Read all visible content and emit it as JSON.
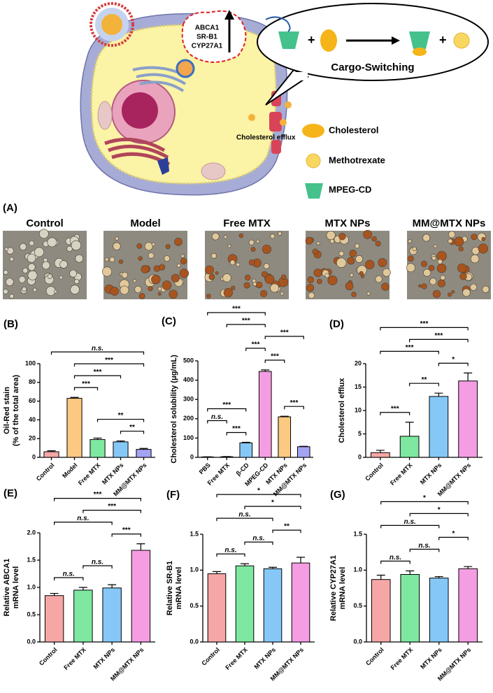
{
  "schematic": {
    "markers": [
      "ABCA1",
      "SR-B1",
      "CYP27A1"
    ],
    "bubble_title": "Cargo-Switching",
    "efflux_label": "Cholesterol efflux",
    "legend": [
      "Cholesterol",
      "Methotrexate",
      "MPEG-CD"
    ]
  },
  "panel_a": {
    "panel": "(A)",
    "labels": [
      "Control",
      "Model",
      "Free MTX",
      "MTX NPs",
      "MM@MTX NPs"
    ]
  },
  "chart_data": [
    {
      "type": "bar",
      "panel": "(B)",
      "ylabel": [
        "Oil-Red stain",
        "(% of the total area)"
      ],
      "categories": [
        "Control",
        "Model",
        "Free MTX",
        "MTX NPs",
        "MM@MTX NPs"
      ],
      "values": [
        6,
        63,
        19,
        16.5,
        8.5
      ],
      "errors": [
        1,
        1,
        1.5,
        1,
        1
      ],
      "colors": [
        "#f7a6a6",
        "#fcc981",
        "#7ee8a1",
        "#85c8f7",
        "#a3a3f2"
      ],
      "ylim": [
        0,
        100
      ],
      "yticks": [
        0,
        20,
        40,
        60,
        80,
        100
      ],
      "brackets": [
        {
          "from": "Control",
          "to": "MM@MTX NPs",
          "label": "n.s."
        },
        {
          "from": "Model",
          "to": "MM@MTX NPs",
          "label": "***"
        },
        {
          "from": "Model",
          "to": "MTX NPs",
          "label": "***"
        },
        {
          "from": "Model",
          "to": "Free MTX",
          "label": "***"
        },
        {
          "from": "Free MTX",
          "to": "MM@MTX NPs",
          "label": "**"
        },
        {
          "from": "MTX NPs",
          "to": "MM@MTX NPs",
          "label": "**"
        }
      ]
    },
    {
      "type": "bar",
      "panel": "(C)",
      "ylabel": [
        "Cholesterol solubility (μg/mL)"
      ],
      "categories": [
        "PBS",
        "Free MTX",
        "β-CD",
        "MPEG-CD",
        "MTX NPs",
        "MM@MTX NPs"
      ],
      "values": [
        2,
        3,
        75,
        445,
        210,
        55
      ],
      "errors": [
        1,
        1,
        3,
        8,
        3,
        2
      ],
      "colors": [
        "#f7a6a6",
        "#7ee8a1",
        "#85c8f7",
        "#f59de3",
        "#fcc981",
        "#a3a3f2"
      ],
      "ylim": [
        0,
        500
      ],
      "yticks": [
        0,
        100,
        200,
        300,
        400,
        500
      ],
      "brackets": [
        {
          "from": "PBS",
          "to": "MPEG-CD",
          "label": "***"
        },
        {
          "from": "Free MTX",
          "to": "MPEG-CD",
          "label": "***"
        },
        {
          "from": "MPEG-CD",
          "to": "MM@MTX NPs",
          "label": "***"
        },
        {
          "from": "β-CD",
          "to": "MPEG-CD",
          "label": "***"
        },
        {
          "from": "MPEG-CD",
          "to": "MTX NPs",
          "label": "***"
        },
        {
          "from": "PBS",
          "to": "β-CD",
          "label": "***"
        },
        {
          "from": "PBS",
          "to": "Free MTX",
          "label": "n.s."
        },
        {
          "from": "Free MTX",
          "to": "β-CD",
          "label": "***"
        },
        {
          "from": "MTX NPs",
          "to": "MM@MTX NPs",
          "label": "***"
        }
      ]
    },
    {
      "type": "bar",
      "panel": "(D)",
      "ylabel": [
        "Cholesterol efflux"
      ],
      "categories": [
        "Control",
        "Free MTX",
        "MTX NPs",
        "MM@MTX NPs"
      ],
      "values": [
        1,
        4.5,
        13,
        16.3
      ],
      "errors": [
        0.5,
        3,
        0.7,
        1.7
      ],
      "colors": [
        "#f7a6a6",
        "#7ee8a1",
        "#85c8f7",
        "#f59de3"
      ],
      "ylim": [
        0,
        20
      ],
      "yticks": [
        0,
        5,
        10,
        15,
        20
      ],
      "brackets": [
        {
          "from": "Control",
          "to": "MM@MTX NPs",
          "label": "***"
        },
        {
          "from": "Free MTX",
          "to": "MM@MTX NPs",
          "label": "***"
        },
        {
          "from": "Control",
          "to": "MTX NPs",
          "label": "***"
        },
        {
          "from": "MTX NPs",
          "to": "MM@MTX NPs",
          "label": "*"
        },
        {
          "from": "Free MTX",
          "to": "MTX NPs",
          "label": "**"
        },
        {
          "from": "Control",
          "to": "Free MTX",
          "label": "***"
        }
      ]
    },
    {
      "type": "bar",
      "panel": "(E)",
      "ylabel": [
        "Relative ABCA1",
        "mRNA level"
      ],
      "categories": [
        "Control",
        "Free MTX",
        "MTX NPs",
        "MM@MTX NPs"
      ],
      "values": [
        0.85,
        0.95,
        0.99,
        1.68
      ],
      "errors": [
        0.04,
        0.05,
        0.06,
        0.12
      ],
      "colors": [
        "#f7a6a6",
        "#7ee8a1",
        "#85c8f7",
        "#f59de3"
      ],
      "ylim": [
        0,
        2
      ],
      "yticks": [
        {
          "value": 0,
          "label": "0.0"
        },
        0.5,
        {
          "value": 1,
          "label": "1.0"
        },
        1.5,
        {
          "value": 2,
          "label": "2.0"
        }
      ],
      "brackets": [
        {
          "from": "Control",
          "to": "MM@MTX NPs",
          "label": "***"
        },
        {
          "from": "Free MTX",
          "to": "MM@MTX NPs",
          "label": "***"
        },
        {
          "from": "Control",
          "to": "MTX NPs",
          "label": "n.s."
        },
        {
          "from": "MTX NPs",
          "to": "MM@MTX NPs",
          "label": "***"
        },
        {
          "from": "Free MTX",
          "to": "MTX NPs",
          "label": "n.s."
        },
        {
          "from": "Control",
          "to": "Free MTX",
          "label": "n.s."
        }
      ]
    },
    {
      "type": "bar",
      "panel": "(F)",
      "ylabel": [
        "Relative SR-B1",
        "mRNA level"
      ],
      "categories": [
        "Control",
        "Free MTX",
        "MTX NPs",
        "MM@MTX NPs"
      ],
      "values": [
        0.95,
        1.06,
        1.02,
        1.1
      ],
      "errors": [
        0.03,
        0.03,
        0.02,
        0.08
      ],
      "colors": [
        "#f7a6a6",
        "#7ee8a1",
        "#85c8f7",
        "#f59de3"
      ],
      "ylim": [
        0,
        1.5
      ],
      "yticks": [
        {
          "value": 0,
          "label": "0.0"
        },
        0.5,
        {
          "value": 1,
          "label": "1.0"
        },
        1.5
      ],
      "brackets": [
        {
          "from": "Control",
          "to": "MM@MTX NPs",
          "label": "*"
        },
        {
          "from": "Free MTX",
          "to": "MM@MTX NPs",
          "label": "*"
        },
        {
          "from": "Control",
          "to": "MTX NPs",
          "label": "n.s."
        },
        {
          "from": "MTX NPs",
          "to": "MM@MTX NPs",
          "label": "**"
        },
        {
          "from": "Free MTX",
          "to": "MTX NPs",
          "label": "n.s."
        },
        {
          "from": "Control",
          "to": "Free MTX",
          "label": "n.s."
        }
      ]
    },
    {
      "type": "bar",
      "panel": "(G)",
      "ylabel": [
        "Relative CYP27A1",
        "mRNA level"
      ],
      "categories": [
        "Control",
        "Free MTX",
        "MTX NPs",
        "MM@MTX NPs"
      ],
      "values": [
        0.87,
        0.94,
        0.89,
        1.02
      ],
      "errors": [
        0.06,
        0.05,
        0.02,
        0.03
      ],
      "colors": [
        "#f7a6a6",
        "#7ee8a1",
        "#85c8f7",
        "#f59de3"
      ],
      "ylim": [
        0,
        1.5
      ],
      "yticks": [
        {
          "value": 0,
          "label": "0.0"
        },
        0.5,
        {
          "value": 1,
          "label": "1.0"
        },
        1.5
      ],
      "brackets": [
        {
          "from": "Control",
          "to": "MM@MTX NPs",
          "label": "*"
        },
        {
          "from": "Free MTX",
          "to": "MM@MTX NPs",
          "label": "*"
        },
        {
          "from": "Control",
          "to": "MTX NPs",
          "label": "n.s."
        },
        {
          "from": "MTX NPs",
          "to": "MM@MTX NPs",
          "label": "*"
        },
        {
          "from": "Free MTX",
          "to": "MTX NPs",
          "label": "n.s."
        },
        {
          "from": "Control",
          "to": "Free MTX",
          "label": "n.s."
        }
      ]
    }
  ]
}
